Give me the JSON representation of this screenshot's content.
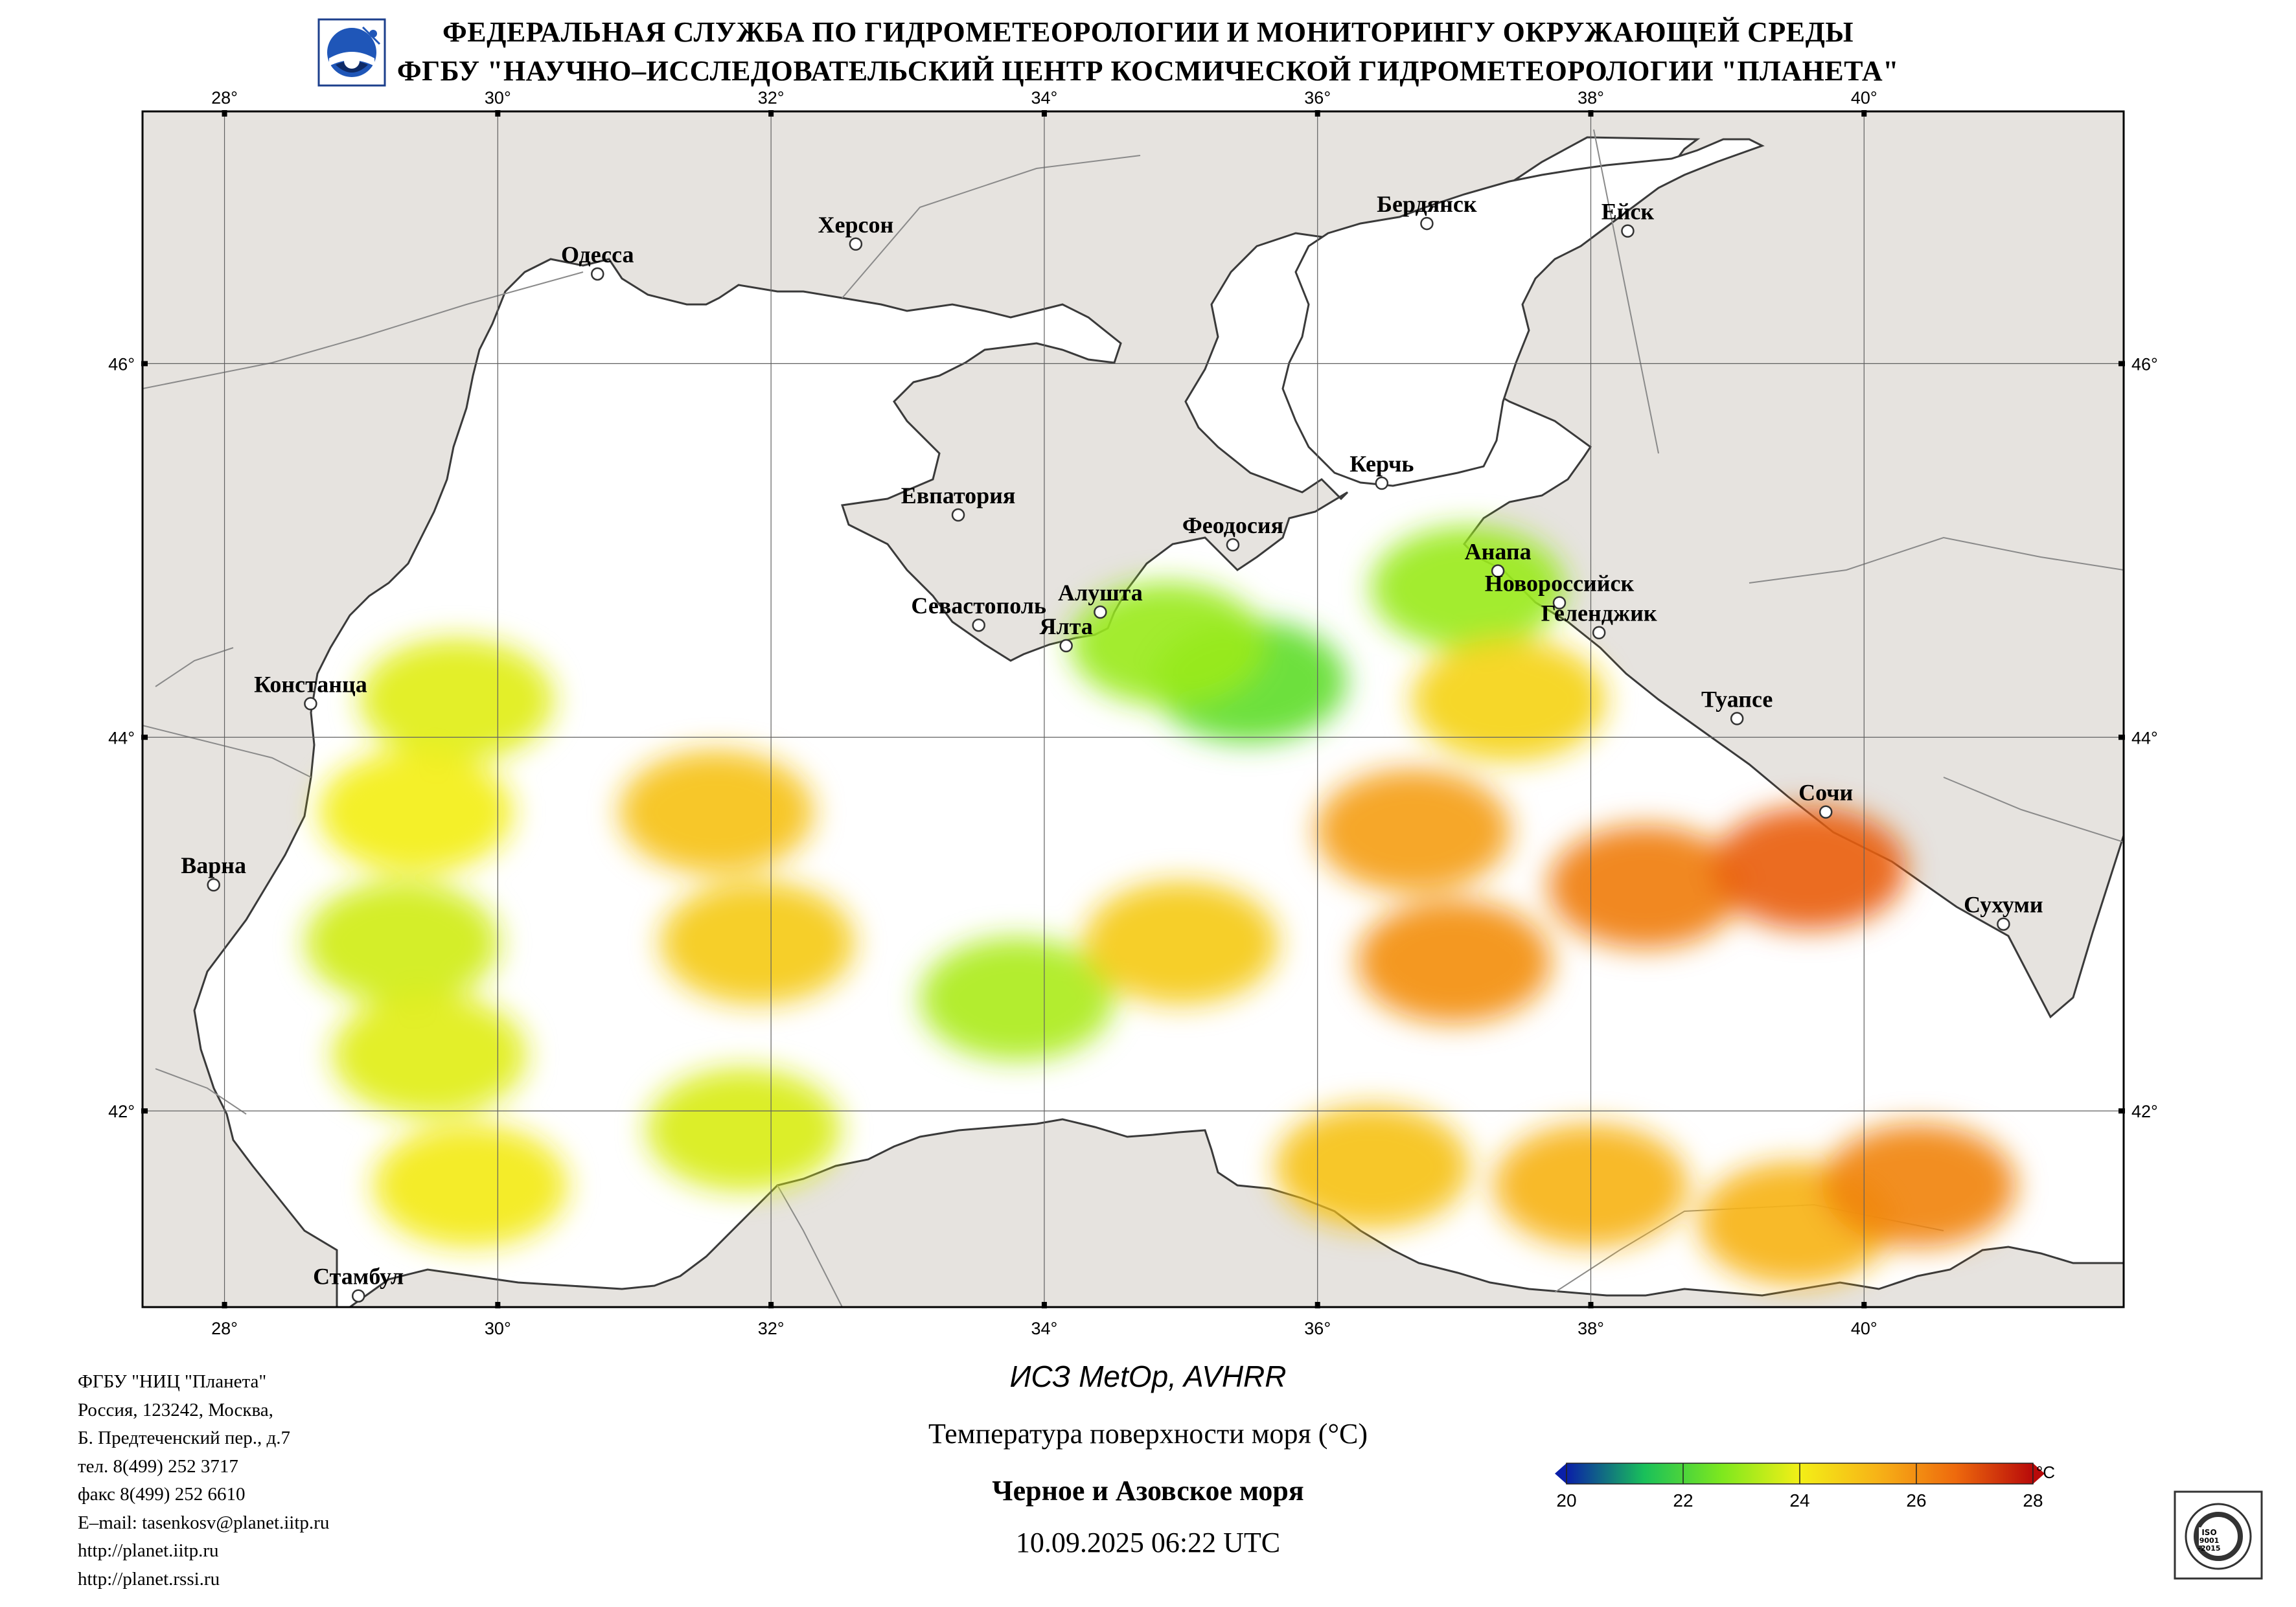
{
  "header": {
    "line1": "ФЕДЕРАЛЬНАЯ СЛУЖБА ПО ГИДРОМЕТЕОРОЛОГИИ И МОНИТОРИНГУ ОКРУЖАЮЩЕЙ СРЕДЫ",
    "line2": "ФГБУ \"НАУЧНО–ИССЛЕДОВАТЕЛЬСКИЙ ЦЕНТР КОСМИЧЕСКОЙ ГИДРОМЕТЕОРОЛОГИИ \"ПЛАНЕТА\"",
    "logo_icon": "planeta-logo-icon"
  },
  "map": {
    "lon_ticks": [
      "28°",
      "30°",
      "32°",
      "34°",
      "36°",
      "38°",
      "40°"
    ],
    "lat_ticks": [
      "46°",
      "44°",
      "42°"
    ],
    "lon_range": [
      27.4,
      41.9
    ],
    "lat_range": [
      40.95,
      47.35
    ],
    "colors": {
      "land": "#e6e3df",
      "sea_no_data": "#ffffff",
      "coast": "#3a3a3a",
      "border": "#8a8a8a"
    },
    "cities": [
      {
        "name": "Одесса",
        "lon": 30.73,
        "lat": 46.48
      },
      {
        "name": "Херсон",
        "lon": 32.62,
        "lat": 46.64
      },
      {
        "name": "Бердянск",
        "lon": 36.8,
        "lat": 46.75
      },
      {
        "name": "Ейск",
        "lon": 38.27,
        "lat": 46.71
      },
      {
        "name": "Керчь",
        "lon": 36.47,
        "lat": 45.36
      },
      {
        "name": "Евпатория",
        "lon": 33.37,
        "lat": 45.19
      },
      {
        "name": "Феодосия",
        "lon": 35.38,
        "lat": 45.03
      },
      {
        "name": "Анапа",
        "lon": 37.32,
        "lat": 44.89
      },
      {
        "name": "Севастополь",
        "lon": 33.52,
        "lat": 44.6
      },
      {
        "name": "Алушта",
        "lon": 34.41,
        "lat": 44.67
      },
      {
        "name": "Новороссийск",
        "lon": 37.77,
        "lat": 44.72
      },
      {
        "name": "Геленджик",
        "lon": 38.06,
        "lat": 44.56
      },
      {
        "name": "Ялта",
        "lon": 34.16,
        "lat": 44.49
      },
      {
        "name": "Констанца",
        "lon": 28.63,
        "lat": 44.18
      },
      {
        "name": "Туапсе",
        "lon": 39.07,
        "lat": 44.1
      },
      {
        "name": "Сочи",
        "lon": 39.72,
        "lat": 43.6
      },
      {
        "name": "Варна",
        "lon": 27.92,
        "lat": 43.21
      },
      {
        "name": "Сухуми",
        "lon": 41.02,
        "lat": 43.0
      },
      {
        "name": "Стамбул",
        "lon": 28.98,
        "lat": 41.01
      }
    ],
    "sst_patches": [
      {
        "lon": 29.7,
        "lat": 44.2,
        "sst": 23.8
      },
      {
        "lon": 29.4,
        "lat": 43.6,
        "sst": 24.0
      },
      {
        "lon": 29.3,
        "lat": 42.9,
        "sst": 23.6
      },
      {
        "lon": 29.5,
        "lat": 42.3,
        "sst": 23.8
      },
      {
        "lon": 29.8,
        "lat": 41.6,
        "sst": 24.1
      },
      {
        "lon": 31.6,
        "lat": 43.6,
        "sst": 25.0
      },
      {
        "lon": 31.9,
        "lat": 42.9,
        "sst": 24.8
      },
      {
        "lon": 31.8,
        "lat": 41.9,
        "sst": 23.7
      },
      {
        "lon": 33.8,
        "lat": 42.6,
        "sst": 23.2
      },
      {
        "lon": 35.5,
        "lat": 44.3,
        "sst": 22.3
      },
      {
        "lon": 34.9,
        "lat": 44.5,
        "sst": 23.0
      },
      {
        "lon": 37.1,
        "lat": 44.8,
        "sst": 23.0
      },
      {
        "lon": 37.4,
        "lat": 44.2,
        "sst": 24.6
      },
      {
        "lon": 36.7,
        "lat": 43.5,
        "sst": 25.7
      },
      {
        "lon": 37.0,
        "lat": 42.8,
        "sst": 26.0
      },
      {
        "lon": 35.0,
        "lat": 42.9,
        "sst": 24.8
      },
      {
        "lon": 38.4,
        "lat": 43.2,
        "sst": 26.3
      },
      {
        "lon": 39.6,
        "lat": 43.3,
        "sst": 26.8
      },
      {
        "lon": 36.4,
        "lat": 41.7,
        "sst": 25.0
      },
      {
        "lon": 38.0,
        "lat": 41.6,
        "sst": 25.3
      },
      {
        "lon": 39.5,
        "lat": 41.4,
        "sst": 25.3
      },
      {
        "lon": 40.4,
        "lat": 41.6,
        "sst": 26.2
      }
    ]
  },
  "footer": {
    "address_lines": [
      "ФГБУ \"НИЦ \"Планета\"",
      "Россия, 123242, Москва,",
      "Б. Предтеченский пер., д.7",
      "тел. 8(499) 252 3717",
      "факс 8(499) 252 6610",
      "E–mail: tasenkosv@planet.iitp.ru",
      "http://planet.iitp.ru",
      "http://planet.rssi.ru"
    ],
    "satellite": "ИСЗ MetOp, AVHRR",
    "parameter": "Температура поверхности моря (°C)",
    "region": "Черное и Азовское моря",
    "datetime": "10.09.2025 06:22 UTC",
    "cert_icon": "iso-9001-2015-certificate-icon"
  },
  "legend": {
    "unit": "°C",
    "ticks": [
      "20",
      "22",
      "24",
      "26",
      "28"
    ],
    "range": [
      20,
      28
    ],
    "colors": [
      "#0a1fa8",
      "#19c05a",
      "#7ee81e",
      "#f3ef17",
      "#f7b317",
      "#ee6a0d",
      "#b80a0a"
    ]
  }
}
